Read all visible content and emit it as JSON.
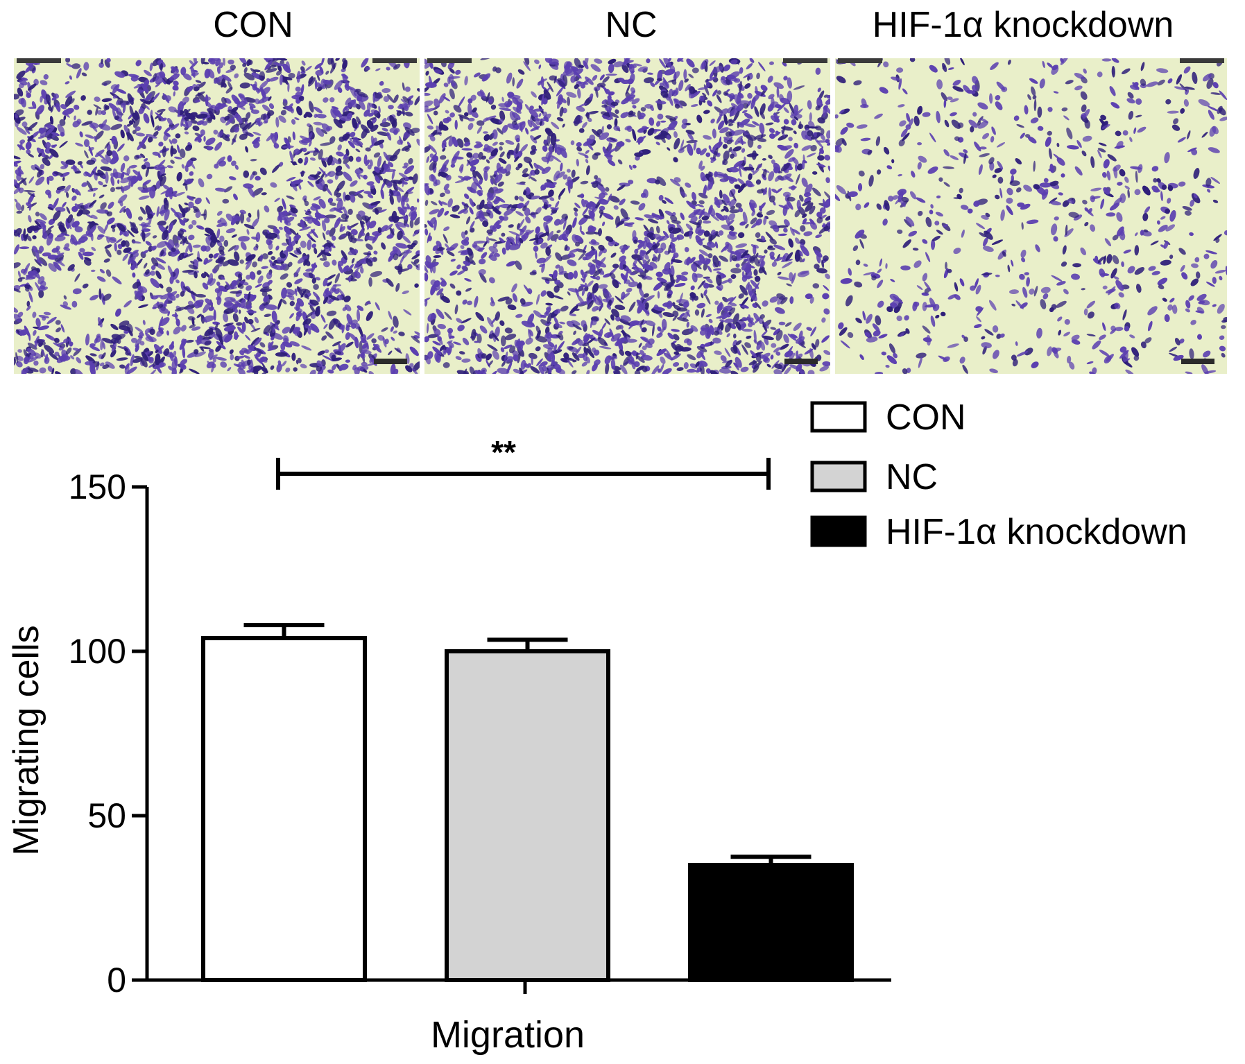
{
  "panels": [
    {
      "title": "CON",
      "density": "high"
    },
    {
      "title": "NC",
      "density": "high"
    },
    {
      "title": "HIF-1α knockdown",
      "density": "low"
    }
  ],
  "colors": {
    "stain": "#5b3fb0",
    "stain_dark": "#2f1f7a",
    "membrane": "#e9efc9",
    "con_fill": "#ffffff",
    "nc_fill": "#d3d3d3",
    "kd_fill": "#000000"
  },
  "chart_data": {
    "type": "bar",
    "xlabel": "Migration",
    "ylabel": "Migrating cells",
    "ylim": [
      0,
      150
    ],
    "yticks": [
      0,
      50,
      100,
      150
    ],
    "categories": [
      "Migration"
    ],
    "series": [
      {
        "name": "CON",
        "values": [
          104
        ],
        "error": [
          4
        ],
        "color": "#ffffff"
      },
      {
        "name": "NC",
        "values": [
          100
        ],
        "error": [
          3.5
        ],
        "color": "#d3d3d3"
      },
      {
        "name": "HIF-1α knockdown",
        "values": [
          35
        ],
        "error": [
          2.5
        ],
        "color": "#000000"
      }
    ],
    "legend_position": "top-right",
    "annotations": [
      {
        "text": "**",
        "from_series": "CON",
        "to_series": "HIF-1α knockdown"
      }
    ]
  }
}
